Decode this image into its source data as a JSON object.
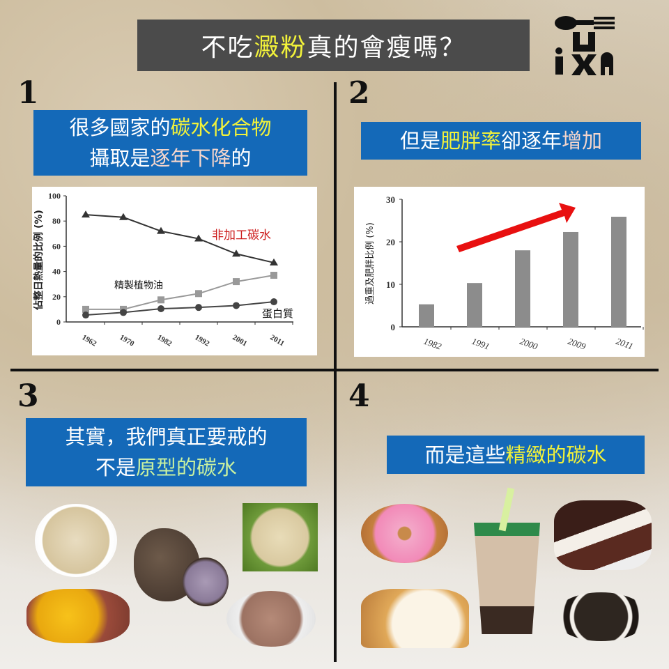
{
  "title": {
    "pre": "不吃",
    "highlight": "澱粉",
    "post": "真的會瘦嗎？"
  },
  "logo": {
    "text": "iXA"
  },
  "sections": [
    {
      "number": "1",
      "line1_pre": "很多國家的",
      "line1_hl": "碳水化合物",
      "line2_pre": "攝取是",
      "line2_hl": "逐年下降",
      "line2_post": "的"
    },
    {
      "number": "2",
      "pre": "但是",
      "hl": "肥胖率",
      "mid": "卻逐年",
      "hl2": "增加"
    },
    {
      "number": "3",
      "line1": "其實，我們真正要戒的",
      "line2_pre": "不是",
      "line2_hl": "原型的碳水"
    },
    {
      "number": "4",
      "pre": "而是這些",
      "hl": "精緻的碳水"
    }
  ],
  "colors": {
    "box": "#1469b8",
    "title_bg": "#4b4b4b",
    "highlight_yellow": "#f2f23a",
    "arrow": "#e81010"
  },
  "chart_data": [
    {
      "type": "line",
      "ylabel": "佔整日熱量的比例 (%)",
      "ylim": [
        0,
        100
      ],
      "yticks": [
        "0",
        "20",
        "40",
        "60",
        "80",
        "100"
      ],
      "categories": [
        "1962",
        "1970",
        "1982",
        "1992",
        "2001",
        "2011"
      ],
      "series": [
        {
          "name": "非加工碳水",
          "marker": "triangle",
          "color": "#333333",
          "values": [
            85,
            83,
            72,
            66,
            54,
            47
          ]
        },
        {
          "name": "精製植物油",
          "marker": "square",
          "color": "#999999",
          "values": [
            10,
            10,
            17.5,
            22.5,
            32,
            37
          ]
        },
        {
          "name": "蛋白質",
          "marker": "circle",
          "color": "#444444",
          "values": [
            5.5,
            7.5,
            10.5,
            11.5,
            13,
            16
          ]
        }
      ]
    },
    {
      "type": "bar",
      "ylabel": "過重及肥胖比例 (%)",
      "ylim": [
        0,
        30
      ],
      "yticks": [
        "0",
        "10",
        "20",
        "30"
      ],
      "categories": [
        "1982",
        "1991",
        "2000",
        "2009",
        "2011"
      ],
      "values": [
        5.3,
        10.3,
        18,
        22.3,
        25.9
      ],
      "color": "#8c8c8c",
      "annotation": "red upward trend arrow"
    }
  ],
  "foods_natural": [
    "oatmeal",
    "taro",
    "quinoa",
    "sweet-potato",
    "brown-rice"
  ],
  "foods_refined": [
    "donut",
    "bubble-milk-tea",
    "cake",
    "bread",
    "oreo"
  ]
}
